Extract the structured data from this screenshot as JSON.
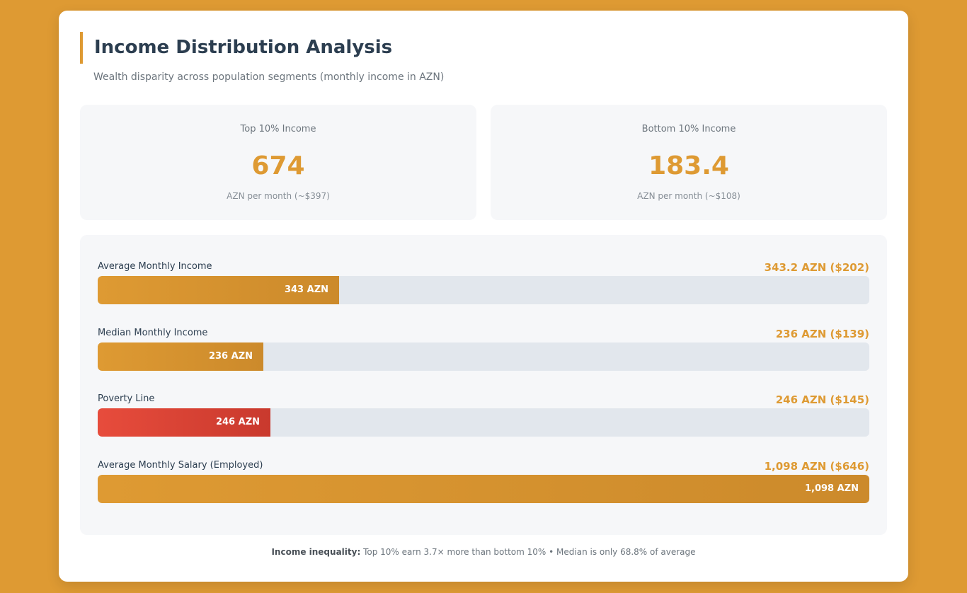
{
  "header": {
    "title": "Income Distribution Analysis",
    "subtitle": "Wealth disparity across population segments (monthly income in AZN)"
  },
  "stats": [
    {
      "label": "Top 10% Income",
      "value": "674",
      "sub": "AZN per month (~$397)"
    },
    {
      "label": "Bottom 10% Income",
      "value": "183.4",
      "sub": "AZN per month (~$108)"
    }
  ],
  "chart_data": {
    "type": "bar",
    "orientation": "horizontal",
    "unit": "AZN",
    "xlim": [
      0,
      1098
    ],
    "categories": [
      "Average Monthly Income",
      "Median Monthly Income",
      "Poverty Line",
      "Average Monthly Salary (Employed)"
    ],
    "values": [
      343.2,
      236,
      246,
      1098
    ],
    "value_labels": [
      "343.2 AZN ($202)",
      "236 AZN ($139)",
      "246 AZN ($145)",
      "1,098 AZN ($646)"
    ],
    "bar_labels": [
      "343 AZN",
      "236 AZN",
      "246 AZN",
      "1,098 AZN"
    ],
    "colors": [
      "#de9a33",
      "#de9a33",
      "#e74c3c",
      "#de9a33"
    ]
  },
  "footer": {
    "label": "Income inequality:",
    "text": " Top 10% earn 3.7× more than bottom 10% • Median is only 68.8% of average"
  }
}
